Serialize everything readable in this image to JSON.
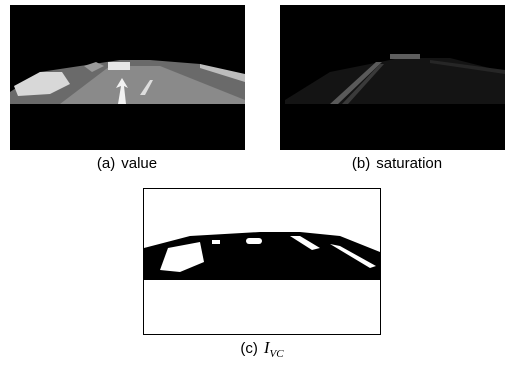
{
  "figure": {
    "panels": [
      {
        "label": "(a)",
        "caption": "value"
      },
      {
        "label": "(b)",
        "caption": "saturation"
      },
      {
        "label": "(c)",
        "symbol": "I",
        "subscript": "VC"
      }
    ]
  }
}
